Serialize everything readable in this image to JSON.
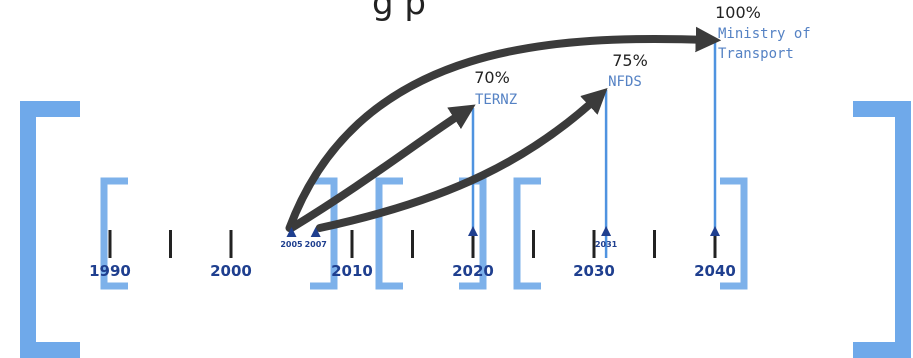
{
  "title_fragment": "g       p",
  "colors": {
    "outer_bracket": "#6fa9ea",
    "inner_bracket": "#7db1ea",
    "target_line": "#4f93e0",
    "arrow": "#3b3b3b",
    "year_label": "#1f3f8f",
    "agency_label": "#5582c4",
    "tick": "#222222"
  },
  "axis": {
    "start": 1990,
    "end": 2040,
    "minor_tick_years": [
      1990,
      1995,
      2000,
      2005,
      2010,
      2015,
      2020,
      2025,
      2030,
      2035,
      2040
    ],
    "major_labels": [
      "1990",
      "2000",
      "2010",
      "2020",
      "2030",
      "2040"
    ]
  },
  "origins": [
    {
      "year": 2005,
      "label": "2005"
    },
    {
      "year": 2007,
      "label": "2007"
    }
  ],
  "targets": [
    {
      "year": 2020,
      "percent": "70%",
      "agency": "TERNZ",
      "from_year": 2005
    },
    {
      "year": 2031,
      "percent": "75%",
      "agency": "NFDS",
      "from_year": 2007,
      "marker": "2031"
    },
    {
      "year": 2040,
      "percent": "100%",
      "agency_lines": [
        "Ministry of",
        "Transport"
      ],
      "from_year": 2005
    }
  ]
}
